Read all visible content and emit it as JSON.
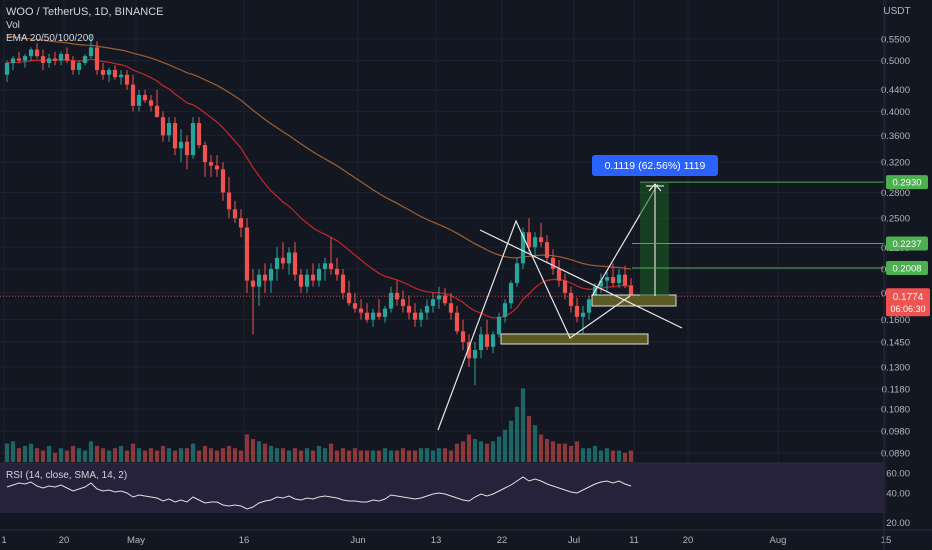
{
  "header": {
    "symbol_line": "WOO / TetherUS, 1D, BINANCE",
    "vol_label": "Vol",
    "ema_label": "EMA 20/50/100/200"
  },
  "price_axis": {
    "unit": "USDT",
    "ticks": [
      "0.5500",
      "0.5000",
      "0.4400",
      "0.4000",
      "0.3600",
      "0.3200",
      "0.2800",
      "0.2500",
      "0.2200",
      "0.2000",
      "0.1800",
      "0.1600",
      "0.1450",
      "0.1300",
      "0.1180",
      "0.1080",
      "0.0980",
      "0.0890"
    ]
  },
  "time_axis": {
    "ticks": [
      "1",
      "20",
      "May",
      "16",
      "Jun",
      "13",
      "22",
      "Jul",
      "11",
      "20",
      "Aug",
      "15"
    ]
  },
  "rsi": {
    "label": "RSI (14, close, SMA, 14, 2)",
    "ticks": [
      "60.00",
      "40.00",
      "20.00"
    ]
  },
  "annotations": {
    "measure_box": "0.1119 (62.56%) 1119",
    "target_labels": [
      "0.2930",
      "0.2237",
      "0.2008"
    ],
    "current_price": "0.1774",
    "countdown": "06:06:30"
  },
  "colors": {
    "background": "#131722",
    "bull": "#26a69a",
    "bear": "#ef5350",
    "ema_fast": "#c62828",
    "ema_slow": "#a1602f",
    "target_green": "#4caf50",
    "measure_blue": "#2962ff",
    "zone_fill": "#5a5a22",
    "rsi_band": "#2a2440"
  },
  "chart_data": {
    "type": "candlestick",
    "y_scale": "log",
    "ylim": [
      0.085,
      0.62
    ],
    "candles_ohlc": [
      [
        0.47,
        0.5,
        0.455,
        0.495
      ],
      [
        0.495,
        0.51,
        0.48,
        0.505
      ],
      [
        0.505,
        0.52,
        0.495,
        0.5
      ],
      [
        0.5,
        0.515,
        0.485,
        0.51
      ],
      [
        0.51,
        0.53,
        0.5,
        0.525
      ],
      [
        0.525,
        0.54,
        0.505,
        0.51
      ],
      [
        0.51,
        0.525,
        0.48,
        0.495
      ],
      [
        0.495,
        0.515,
        0.485,
        0.505
      ],
      [
        0.505,
        0.52,
        0.49,
        0.5
      ],
      [
        0.5,
        0.52,
        0.49,
        0.515
      ],
      [
        0.515,
        0.53,
        0.495,
        0.5
      ],
      [
        0.5,
        0.51,
        0.47,
        0.48
      ],
      [
        0.48,
        0.5,
        0.47,
        0.495
      ],
      [
        0.495,
        0.515,
        0.49,
        0.51
      ],
      [
        0.51,
        0.56,
        0.505,
        0.53
      ],
      [
        0.53,
        0.545,
        0.47,
        0.48
      ],
      [
        0.48,
        0.495,
        0.46,
        0.47
      ],
      [
        0.47,
        0.485,
        0.455,
        0.48
      ],
      [
        0.48,
        0.49,
        0.46,
        0.465
      ],
      [
        0.465,
        0.48,
        0.45,
        0.47
      ],
      [
        0.47,
        0.48,
        0.44,
        0.45
      ],
      [
        0.45,
        0.47,
        0.4,
        0.41
      ],
      [
        0.41,
        0.44,
        0.4,
        0.43
      ],
      [
        0.43,
        0.44,
        0.415,
        0.42
      ],
      [
        0.42,
        0.43,
        0.4,
        0.41
      ],
      [
        0.41,
        0.44,
        0.39,
        0.39
      ],
      [
        0.39,
        0.4,
        0.35,
        0.36
      ],
      [
        0.36,
        0.39,
        0.35,
        0.38
      ],
      [
        0.38,
        0.39,
        0.33,
        0.34
      ],
      [
        0.34,
        0.37,
        0.32,
        0.35
      ],
      [
        0.35,
        0.36,
        0.31,
        0.33
      ],
      [
        0.33,
        0.39,
        0.325,
        0.38
      ],
      [
        0.38,
        0.39,
        0.34,
        0.345
      ],
      [
        0.345,
        0.35,
        0.3,
        0.32
      ],
      [
        0.32,
        0.33,
        0.3,
        0.315
      ],
      [
        0.315,
        0.33,
        0.3,
        0.31
      ],
      [
        0.31,
        0.32,
        0.27,
        0.28
      ],
      [
        0.28,
        0.3,
        0.25,
        0.26
      ],
      [
        0.26,
        0.27,
        0.245,
        0.25
      ],
      [
        0.25,
        0.26,
        0.23,
        0.24
      ],
      [
        0.24,
        0.25,
        0.18,
        0.19
      ],
      [
        0.19,
        0.2,
        0.15,
        0.185
      ],
      [
        0.185,
        0.2,
        0.17,
        0.195
      ],
      [
        0.195,
        0.205,
        0.18,
        0.19
      ],
      [
        0.19,
        0.205,
        0.18,
        0.2
      ],
      [
        0.2,
        0.22,
        0.19,
        0.21
      ],
      [
        0.21,
        0.225,
        0.2,
        0.205
      ],
      [
        0.205,
        0.22,
        0.195,
        0.215
      ],
      [
        0.215,
        0.225,
        0.19,
        0.195
      ],
      [
        0.195,
        0.2,
        0.18,
        0.185
      ],
      [
        0.185,
        0.2,
        0.18,
        0.195
      ],
      [
        0.195,
        0.205,
        0.185,
        0.19
      ],
      [
        0.19,
        0.205,
        0.185,
        0.2
      ],
      [
        0.2,
        0.21,
        0.19,
        0.205
      ],
      [
        0.205,
        0.23,
        0.195,
        0.2
      ],
      [
        0.2,
        0.21,
        0.19,
        0.195
      ],
      [
        0.195,
        0.2,
        0.175,
        0.18
      ],
      [
        0.18,
        0.19,
        0.17,
        0.172
      ],
      [
        0.172,
        0.18,
        0.165,
        0.168
      ],
      [
        0.168,
        0.175,
        0.16,
        0.165
      ],
      [
        0.165,
        0.172,
        0.158,
        0.16
      ],
      [
        0.16,
        0.168,
        0.155,
        0.165
      ],
      [
        0.165,
        0.175,
        0.16,
        0.162
      ],
      [
        0.162,
        0.17,
        0.158,
        0.168
      ],
      [
        0.168,
        0.185,
        0.165,
        0.18
      ],
      [
        0.18,
        0.19,
        0.17,
        0.175
      ],
      [
        0.175,
        0.182,
        0.165,
        0.17
      ],
      [
        0.17,
        0.178,
        0.16,
        0.165
      ],
      [
        0.165,
        0.172,
        0.155,
        0.16
      ],
      [
        0.16,
        0.168,
        0.155,
        0.165
      ],
      [
        0.165,
        0.175,
        0.16,
        0.17
      ],
      [
        0.17,
        0.18,
        0.165,
        0.175
      ],
      [
        0.175,
        0.185,
        0.168,
        0.178
      ],
      [
        0.178,
        0.184,
        0.17,
        0.172
      ],
      [
        0.172,
        0.18,
        0.16,
        0.165
      ],
      [
        0.165,
        0.17,
        0.15,
        0.152
      ],
      [
        0.152,
        0.16,
        0.14,
        0.145
      ],
      [
        0.145,
        0.15,
        0.13,
        0.135
      ],
      [
        0.135,
        0.145,
        0.12,
        0.14
      ],
      [
        0.14,
        0.155,
        0.135,
        0.15
      ],
      [
        0.15,
        0.16,
        0.14,
        0.142
      ],
      [
        0.142,
        0.152,
        0.138,
        0.15
      ],
      [
        0.15,
        0.165,
        0.148,
        0.162
      ],
      [
        0.162,
        0.175,
        0.158,
        0.172
      ],
      [
        0.172,
        0.19,
        0.168,
        0.188
      ],
      [
        0.188,
        0.21,
        0.185,
        0.205
      ],
      [
        0.205,
        0.24,
        0.2,
        0.235
      ],
      [
        0.235,
        0.25,
        0.215,
        0.22
      ],
      [
        0.22,
        0.235,
        0.21,
        0.23
      ],
      [
        0.23,
        0.245,
        0.22,
        0.225
      ],
      [
        0.225,
        0.232,
        0.205,
        0.21
      ],
      [
        0.21,
        0.218,
        0.195,
        0.2
      ],
      [
        0.2,
        0.208,
        0.185,
        0.19
      ],
      [
        0.19,
        0.196,
        0.175,
        0.18
      ],
      [
        0.18,
        0.185,
        0.165,
        0.17
      ],
      [
        0.17,
        0.176,
        0.158,
        0.162
      ],
      [
        0.162,
        0.17,
        0.15,
        0.165
      ],
      [
        0.165,
        0.178,
        0.16,
        0.175
      ],
      [
        0.175,
        0.188,
        0.17,
        0.185
      ],
      [
        0.185,
        0.196,
        0.18,
        0.19
      ],
      [
        0.19,
        0.198,
        0.182,
        0.193
      ],
      [
        0.193,
        0.205,
        0.185,
        0.188
      ],
      [
        0.188,
        0.2,
        0.184,
        0.195
      ],
      [
        0.195,
        0.203,
        0.184,
        0.186
      ],
      [
        0.186,
        0.192,
        0.174,
        0.1774
      ]
    ],
    "volume": [
      8,
      9,
      6,
      7,
      8,
      6,
      5,
      7,
      4,
      6,
      5,
      7,
      6,
      5,
      9,
      7,
      6,
      5,
      6,
      7,
      5,
      8,
      6,
      5,
      6,
      5,
      7,
      6,
      5,
      6,
      6,
      8,
      5,
      7,
      6,
      5,
      6,
      7,
      6,
      5,
      12,
      10,
      9,
      8,
      7,
      6,
      6,
      5,
      6,
      5,
      6,
      5,
      7,
      6,
      8,
      5,
      6,
      5,
      6,
      5,
      5,
      5,
      5,
      6,
      5,
      5,
      6,
      5,
      5,
      6,
      6,
      5,
      6,
      6,
      5,
      8,
      9,
      12,
      10,
      9,
      8,
      9,
      11,
      14,
      18,
      24,
      32,
      20,
      16,
      12,
      10,
      9,
      8,
      8,
      7,
      9,
      6,
      6,
      7,
      5,
      6,
      5,
      5,
      4,
      5
    ],
    "rsi_values": [
      46,
      48,
      50,
      49,
      51,
      47,
      45,
      47,
      46,
      48,
      45,
      42,
      44,
      46,
      50,
      44,
      42,
      43,
      41,
      42,
      40,
      36,
      38,
      37,
      36,
      35,
      32,
      34,
      31,
      33,
      31,
      36,
      33,
      30,
      31,
      31,
      28,
      27,
      28,
      27,
      24,
      26,
      30,
      32,
      33,
      36,
      35,
      37,
      34,
      33,
      35,
      34,
      36,
      37,
      36,
      35,
      33,
      32,
      32,
      31,
      31,
      33,
      32,
      34,
      38,
      37,
      36,
      35,
      34,
      35,
      37,
      39,
      40,
      39,
      37,
      35,
      33,
      32,
      36,
      39,
      37,
      39,
      42,
      45,
      48,
      52,
      56,
      52,
      54,
      52,
      49,
      47,
      45,
      43,
      41,
      40,
      43,
      46,
      49,
      51,
      52,
      50,
      52,
      49,
      47
    ],
    "levels": [
      0.293,
      0.2237,
      0.2008
    ],
    "current_price": 0.1774,
    "measure": {
      "change": "0.1119",
      "percent": "62.56%",
      "bars": "1119"
    }
  }
}
